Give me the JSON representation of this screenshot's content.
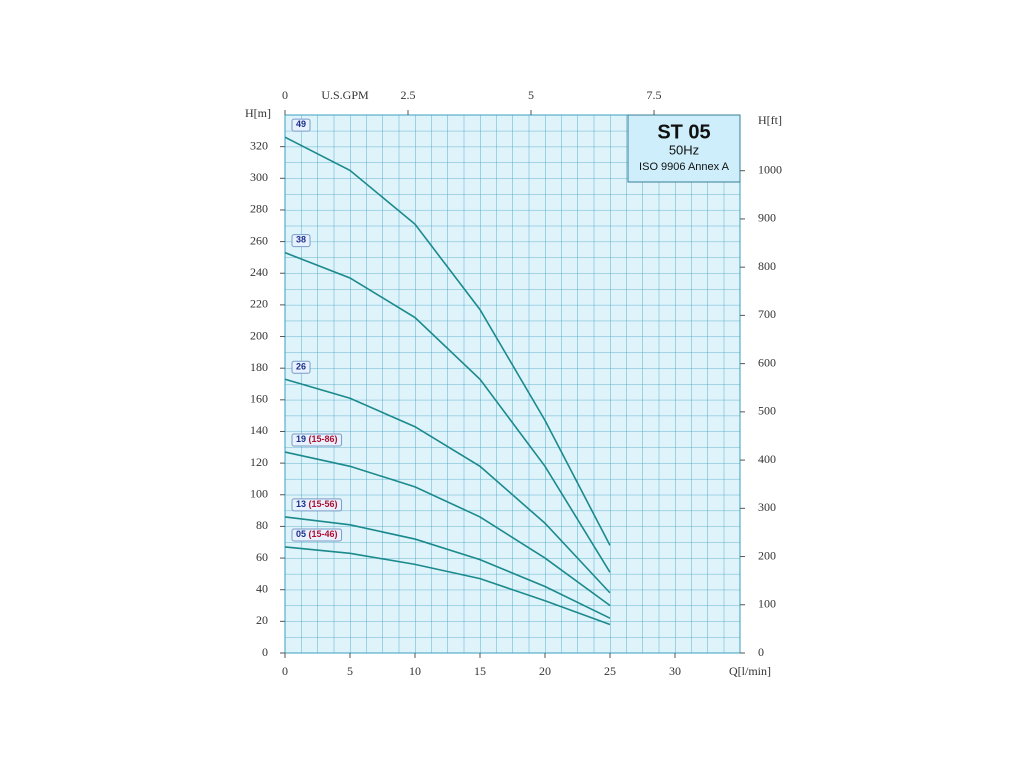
{
  "chart_data": {
    "type": "line",
    "title": "ST 05",
    "subtitle": "50Hz",
    "standard": "ISO 9906 Annex A",
    "x_label": "Q[l/min]",
    "y_label": "H[m]",
    "y2_label": "H[ft]",
    "x2_label": "U.S.GPM",
    "x": [
      0,
      5,
      10,
      15,
      20,
      25
    ],
    "xlim": [
      0,
      35
    ],
    "xticks": [
      0,
      5,
      10,
      15,
      20,
      25,
      30
    ],
    "x2lim": [
      0,
      9.247
    ],
    "x2ticks": [
      0,
      2.5,
      5,
      7.5
    ],
    "ylim": [
      0,
      340
    ],
    "yticks": [
      0,
      20,
      40,
      60,
      80,
      100,
      120,
      140,
      160,
      180,
      200,
      220,
      240,
      260,
      280,
      300,
      320
    ],
    "y2lim": [
      0,
      1115.5
    ],
    "y2ticks": [
      0,
      100,
      200,
      300,
      400,
      500,
      600,
      700,
      800,
      900,
      1000
    ],
    "grid": true,
    "series": [
      {
        "name": "49",
        "color": "#1b8a8c",
        "values": [
          326,
          305,
          271,
          217,
          147,
          68
        ]
      },
      {
        "name": "38",
        "color": "#1b8a8c",
        "values": [
          253,
          237,
          212,
          173,
          118,
          51
        ]
      },
      {
        "name": "26",
        "color": "#1b8a8c",
        "values": [
          173,
          161,
          143,
          118,
          82,
          38
        ]
      },
      {
        "name": "19",
        "model": "(15-86)",
        "color": "#1b8a8c",
        "values": [
          127,
          118,
          105,
          86,
          60,
          30
        ]
      },
      {
        "name": "13",
        "model": "(15-56)",
        "color": "#1b8a8c",
        "values": [
          86,
          81,
          72,
          59,
          42,
          22
        ]
      },
      {
        "name": "05",
        "model": "(15-46)",
        "color": "#1b8a8c",
        "values": [
          67,
          63,
          56,
          47,
          33,
          18
        ]
      }
    ]
  }
}
